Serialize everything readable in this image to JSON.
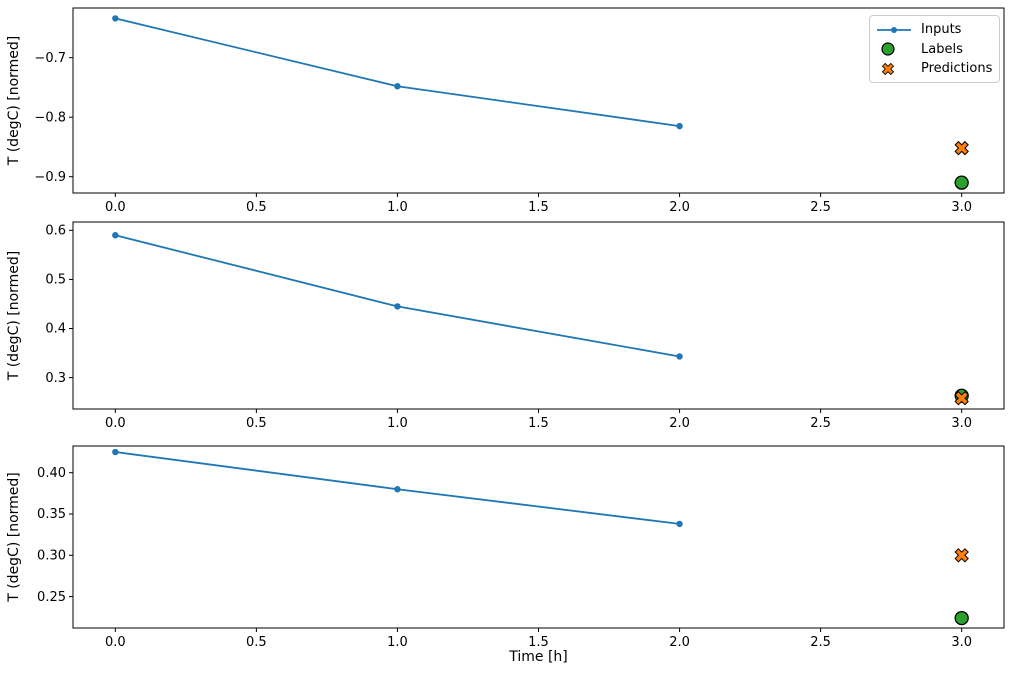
{
  "colors": {
    "background": "#ffffff",
    "axis": "#000000",
    "text": "#000000",
    "legend_border": "#cccccc",
    "inputs": "#1f77b4",
    "labels": "#2ca02c",
    "predictions": "#ff7f0e",
    "marker_edge": "#000000"
  },
  "legend": {
    "position": "upper-right-subplot-1",
    "entries": [
      {
        "label": "Inputs",
        "marker": "line-dot",
        "color": "#1f77b4"
      },
      {
        "label": "Labels",
        "marker": "circle",
        "color": "#2ca02c",
        "edge_color": "#000000"
      },
      {
        "label": "Predictions",
        "marker": "x-cross",
        "color": "#ff7f0e",
        "edge_color": "#000000"
      }
    ]
  },
  "figure": {
    "xlabel": "Time [h]",
    "ylabel": "T (degC) [normed]",
    "grid": false,
    "num_subplots": 3
  },
  "chart_data": [
    {
      "type": "line",
      "title": "",
      "xlabel": "",
      "ylabel": "T (degC) [normed]",
      "xlim": [
        -0.15,
        3.15
      ],
      "ylim": [
        -0.9274,
        -0.6165
      ],
      "xticks": [
        0.0,
        0.5,
        1.0,
        1.5,
        2.0,
        2.5,
        3.0
      ],
      "xtick_labels": [
        "0.0",
        "0.5",
        "1.0",
        "1.5",
        "2.0",
        "2.5",
        "3.0"
      ],
      "yticks": [
        -0.9,
        -0.8,
        -0.7
      ],
      "ytick_labels": [
        "−0.9",
        "−0.8",
        "−0.7"
      ],
      "legend_visible": true,
      "series": [
        {
          "name": "Inputs",
          "type": "line",
          "marker": "dot",
          "color": "#1f77b4",
          "x": [
            0,
            1,
            2
          ],
          "y": [
            -0.634,
            -0.748,
            -0.815
          ]
        },
        {
          "name": "Labels",
          "type": "scatter",
          "marker": "circle",
          "color": "#2ca02c",
          "edge_color": "#000000",
          "x": [
            3
          ],
          "y": [
            -0.91
          ]
        },
        {
          "name": "Predictions",
          "type": "scatter",
          "marker": "x-cross",
          "color": "#ff7f0e",
          "edge_color": "#000000",
          "x": [
            3
          ],
          "y": [
            -0.852
          ]
        }
      ]
    },
    {
      "type": "line",
      "title": "",
      "xlabel": "",
      "ylabel": "T (degC) [normed]",
      "xlim": [
        -0.15,
        3.15
      ],
      "ylim": [
        0.236,
        0.617
      ],
      "xticks": [
        0.0,
        0.5,
        1.0,
        1.5,
        2.0,
        2.5,
        3.0
      ],
      "xtick_labels": [
        "0.0",
        "0.5",
        "1.0",
        "1.5",
        "2.0",
        "2.5",
        "3.0"
      ],
      "yticks": [
        0.3,
        0.4,
        0.5,
        0.6
      ],
      "ytick_labels": [
        "0.3",
        "0.4",
        "0.5",
        "0.6"
      ],
      "legend_visible": false,
      "series": [
        {
          "name": "Inputs",
          "type": "line",
          "marker": "dot",
          "color": "#1f77b4",
          "x": [
            0,
            1,
            2
          ],
          "y": [
            0.59,
            0.445,
            0.343
          ]
        },
        {
          "name": "Labels",
          "type": "scatter",
          "marker": "circle",
          "color": "#2ca02c",
          "edge_color": "#000000",
          "x": [
            3
          ],
          "y": [
            0.263
          ]
        },
        {
          "name": "Predictions",
          "type": "scatter",
          "marker": "x-cross",
          "color": "#ff7f0e",
          "edge_color": "#000000",
          "x": [
            3
          ],
          "y": [
            0.258
          ]
        }
      ]
    },
    {
      "type": "line",
      "title": "",
      "xlabel": "Time [h]",
      "ylabel": "T (degC) [normed]",
      "xlim": [
        -0.15,
        3.15
      ],
      "ylim": [
        0.212,
        0.4323
      ],
      "xticks": [
        0.0,
        0.5,
        1.0,
        1.5,
        2.0,
        2.5,
        3.0
      ],
      "xtick_labels": [
        "0.0",
        "0.5",
        "1.0",
        "1.5",
        "2.0",
        "2.5",
        "3.0"
      ],
      "yticks": [
        0.25,
        0.3,
        0.35,
        0.4
      ],
      "ytick_labels": [
        "0.25",
        "0.30",
        "0.35",
        "0.40"
      ],
      "legend_visible": false,
      "series": [
        {
          "name": "Inputs",
          "type": "line",
          "marker": "dot",
          "color": "#1f77b4",
          "x": [
            0,
            1,
            2
          ],
          "y": [
            0.425,
            0.38,
            0.338
          ]
        },
        {
          "name": "Labels",
          "type": "scatter",
          "marker": "circle",
          "color": "#2ca02c",
          "edge_color": "#000000",
          "x": [
            3
          ],
          "y": [
            0.224
          ]
        },
        {
          "name": "Predictions",
          "type": "scatter",
          "marker": "x-cross",
          "color": "#ff7f0e",
          "edge_color": "#000000",
          "x": [
            3
          ],
          "y": [
            0.3
          ]
        }
      ]
    }
  ]
}
